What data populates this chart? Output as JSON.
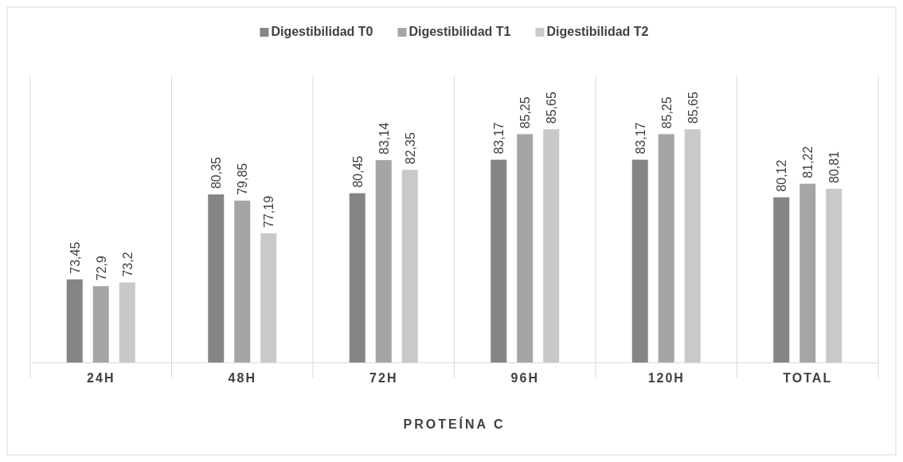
{
  "chart_data": {
    "type": "bar",
    "xlabel": "PROTEÍNA C",
    "categories": [
      "24H",
      "48H",
      "72H",
      "96H",
      "120H",
      "TOTAL"
    ],
    "series": [
      {
        "name": "Digestibilidad T0",
        "color": "#858585",
        "values": [
          73.45,
          80.35,
          80.45,
          83.17,
          83.17,
          80.12
        ],
        "value_labels": [
          "73,45",
          "80,35",
          "80,45",
          "83,17",
          "83,17",
          "80,12"
        ]
      },
      {
        "name": "Digestibilidad T1",
        "color": "#a5a5a5",
        "values": [
          72.9,
          79.85,
          83.14,
          85.25,
          85.25,
          81.22
        ],
        "value_labels": [
          "72,9",
          "79,85",
          "83,14",
          "85,25",
          "85,25",
          "81,22"
        ]
      },
      {
        "name": "Digestibilidad T2",
        "color": "#c9c9c9",
        "values": [
          73.2,
          77.19,
          82.35,
          85.65,
          85.65,
          80.81
        ],
        "value_labels": [
          "73,2",
          "77,19",
          "82,35",
          "85,65",
          "85,65",
          "80,81"
        ]
      }
    ],
    "ylim": [
      66.7,
      90
    ],
    "tick_labels": "x",
    "grid": "x",
    "legend": "top"
  }
}
